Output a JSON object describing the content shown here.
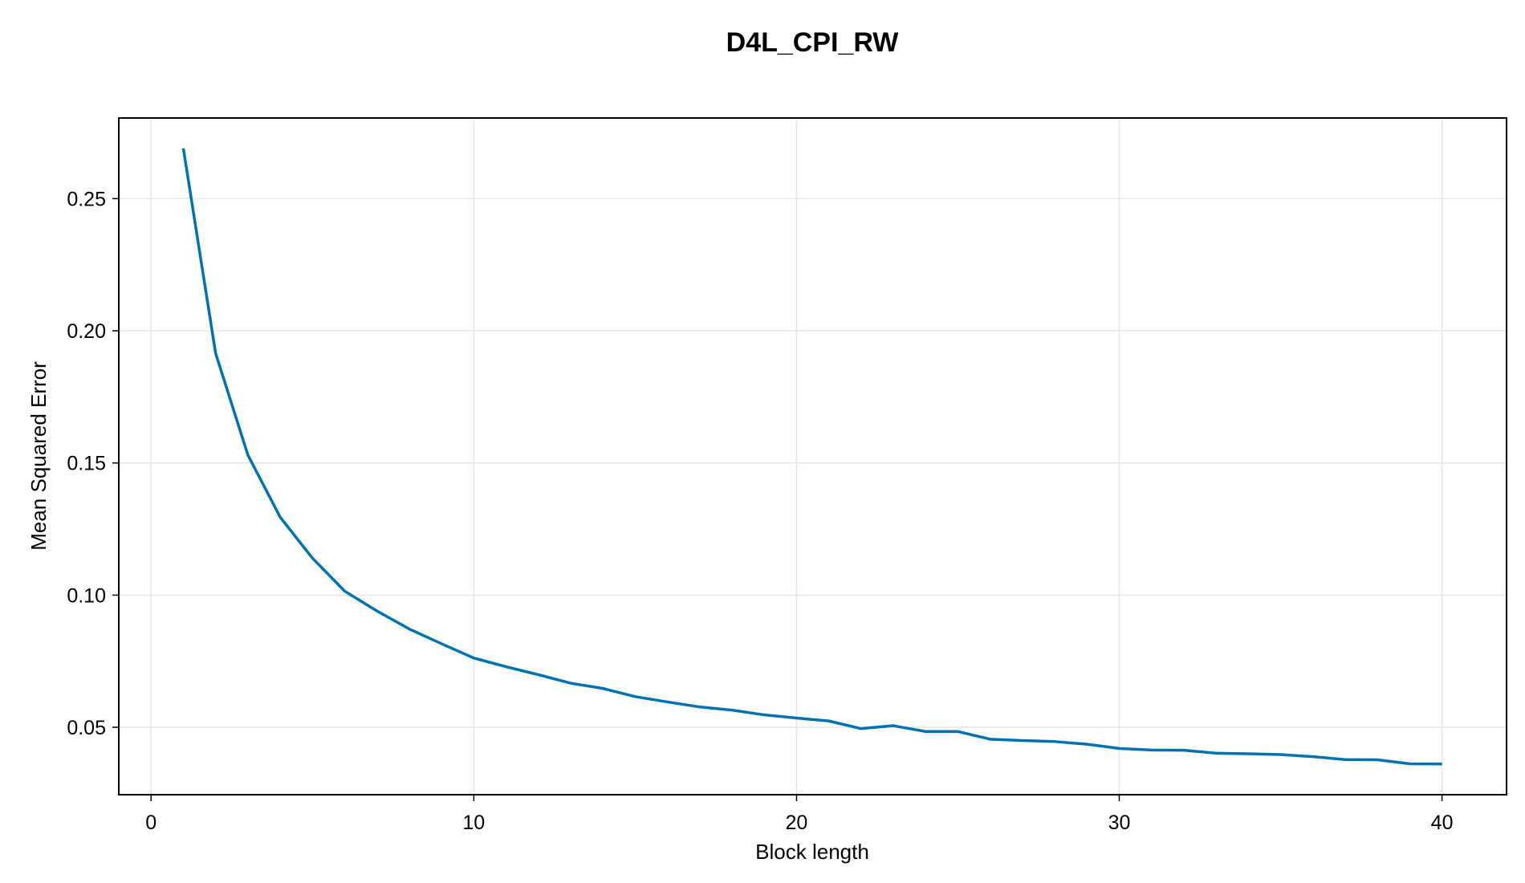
{
  "chart_data": {
    "type": "line",
    "title": "D4L_CPI_RW",
    "xlabel": "Block length",
    "ylabel": "Mean Squared Error",
    "xlim": [
      -1,
      42
    ],
    "ylim": [
      0.0245,
      0.2805
    ],
    "xticks": [
      0,
      10,
      20,
      30,
      40
    ],
    "yticks": [
      0.05,
      0.1,
      0.15,
      0.2,
      0.25
    ],
    "xtick_labels": [
      "0",
      "10",
      "20",
      "30",
      "40"
    ],
    "ytick_labels": [
      "0.05",
      "0.10",
      "0.15",
      "0.20",
      "0.25"
    ],
    "grid": true,
    "legend": false,
    "line_color": "#0072b2",
    "series": [
      {
        "x": [
          1,
          2,
          3,
          4,
          5,
          6,
          7,
          8,
          9,
          10,
          11,
          12,
          13,
          14,
          15,
          16,
          17,
          18,
          19,
          20,
          21,
          22,
          23,
          24,
          25,
          26,
          27,
          28,
          29,
          30,
          31,
          32,
          33,
          34,
          35,
          36,
          37,
          38,
          39,
          40
        ],
        "values": [
          0.269,
          0.1915,
          0.153,
          0.1295,
          0.114,
          0.1015,
          0.094,
          0.0872,
          0.0816,
          0.0762,
          0.0729,
          0.0699,
          0.0667,
          0.0647,
          0.0616,
          0.0596,
          0.0577,
          0.0565,
          0.0547,
          0.0535,
          0.0524,
          0.0495,
          0.0506,
          0.0484,
          0.0484,
          0.0455,
          0.045,
          0.0446,
          0.0436,
          0.042,
          0.0414,
          0.0413,
          0.0402,
          0.04,
          0.0397,
          0.0389,
          0.0378,
          0.0377,
          0.0362,
          0.0361
        ]
      }
    ]
  }
}
